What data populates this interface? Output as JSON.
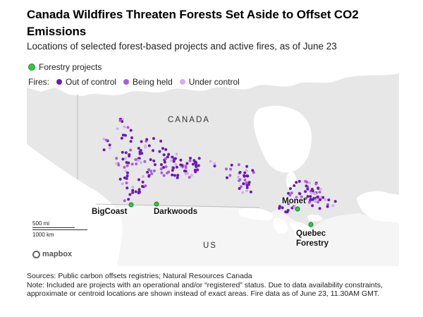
{
  "title": "Canada Wildfires Threaten Forests Set Aside to Offset CO2 Emissions",
  "subtitle": "Locations of selected forest-based projects and active fires, as of June 23",
  "legend": {
    "projects_label": "Forestry projects",
    "fires_label": "Fires:",
    "out_of_control": "Out of control",
    "being_held": "Being held",
    "under_control": "Under control"
  },
  "colors": {
    "project": "#2ecc40",
    "out_of_control": "#6a1bb0",
    "being_held": "#a85fd6",
    "under_control": "#d3b0ec",
    "land_canada": "#e7e7e7",
    "land_us": "#f5f5f5",
    "water": "#ffffff"
  },
  "map": {
    "country_canada": "CANADA",
    "country_us": "US",
    "scale_mi": "500 mi",
    "scale_km": "1000 km",
    "attribution": "mapbox"
  },
  "projects": [
    {
      "name": "BigCoast"
    },
    {
      "name": "Darkwoods"
    },
    {
      "name": "Monet"
    },
    {
      "name": "Quebec Forestry"
    }
  ],
  "source": "Sources: Public carbon offsets registries; Natural Resources Canada",
  "note": "Note: Included are projects with an operational and/or “registered” status. Due to data availability constraints, approximate or centroid locations are shown instead of exact areas. Fire data as of June 23, 11.30AM GMT."
}
